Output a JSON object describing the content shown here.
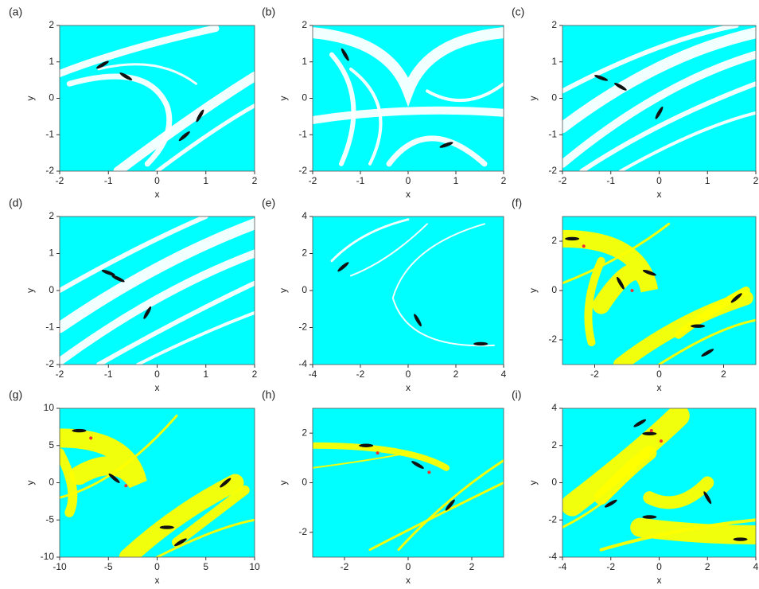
{
  "chart_data": [
    {
      "type": "image",
      "panel": "(a)",
      "xlabel": "x",
      "ylabel": "y",
      "color": "#00ffff",
      "xlim": [
        -2,
        2
      ],
      "ylim": [
        -2,
        2
      ],
      "xticks": [
        -2,
        -1,
        0,
        1,
        2
      ],
      "yticks": [
        -2,
        -1,
        0,
        1,
        2
      ]
    },
    {
      "type": "image",
      "panel": "(b)",
      "xlabel": "x",
      "ylabel": "y",
      "color": "#00ffff",
      "xlim": [
        -2,
        2
      ],
      "ylim": [
        -2,
        2
      ],
      "xticks": [
        -2,
        -1,
        0,
        1,
        2
      ],
      "yticks": [
        -2,
        -1,
        0,
        1,
        2
      ]
    },
    {
      "type": "image",
      "panel": "(c)",
      "xlabel": "x",
      "ylabel": "y",
      "color": "#00ffff",
      "xlim": [
        -2,
        2
      ],
      "ylim": [
        -2,
        2
      ],
      "xticks": [
        -2,
        -1,
        0,
        1,
        2
      ],
      "yticks": [
        -2,
        -1,
        0,
        1,
        2
      ]
    },
    {
      "type": "image",
      "panel": "(d)",
      "xlabel": "x",
      "ylabel": "y",
      "color": "#00ffff",
      "xlim": [
        -2,
        2
      ],
      "ylim": [
        -2,
        2
      ],
      "xticks": [
        -2,
        -1,
        0,
        1,
        2
      ],
      "yticks": [
        -2,
        -1,
        0,
        1,
        2
      ]
    },
    {
      "type": "image",
      "panel": "(e)",
      "xlabel": "x",
      "ylabel": "y",
      "color": "#00ffff",
      "xlim": [
        -4,
        4
      ],
      "ylim": [
        -4,
        4
      ],
      "xticks": [
        -4,
        -2,
        0,
        2,
        4
      ],
      "yticks": [
        -4,
        -2,
        0,
        2,
        4
      ]
    },
    {
      "type": "image",
      "panel": "(f)",
      "xlabel": "x",
      "ylabel": "y",
      "color": "#00ffff",
      "xlim": [
        -3,
        3
      ],
      "ylim": [
        -3,
        3
      ],
      "xticks": [
        -2,
        0,
        2
      ],
      "yticks": [
        -2,
        0,
        2
      ]
    },
    {
      "type": "image",
      "panel": "(g)",
      "xlabel": "x",
      "ylabel": "y",
      "color": "#00ffff",
      "xlim": [
        -10,
        10
      ],
      "ylim": [
        -10,
        10
      ],
      "xticks": [
        -10,
        -5,
        0,
        5,
        10
      ],
      "yticks": [
        -10,
        -5,
        0,
        5,
        10
      ]
    },
    {
      "type": "image",
      "panel": "(h)",
      "xlabel": "x",
      "ylabel": "y",
      "color": "#00ffff",
      "xlim": [
        -3,
        3
      ],
      "ylim": [
        -3,
        3
      ],
      "xticks": [
        -2,
        0,
        2
      ],
      "yticks": [
        -2,
        0,
        2
      ]
    },
    {
      "type": "image",
      "panel": "(i)",
      "xlabel": "x",
      "ylabel": "y",
      "color": "#00ffff",
      "xlim": [
        -4,
        4
      ],
      "ylim": [
        -4,
        4
      ],
      "xticks": [
        -4,
        -2,
        0,
        2,
        4
      ],
      "yticks": [
        -4,
        -2,
        0,
        2,
        4
      ]
    }
  ]
}
